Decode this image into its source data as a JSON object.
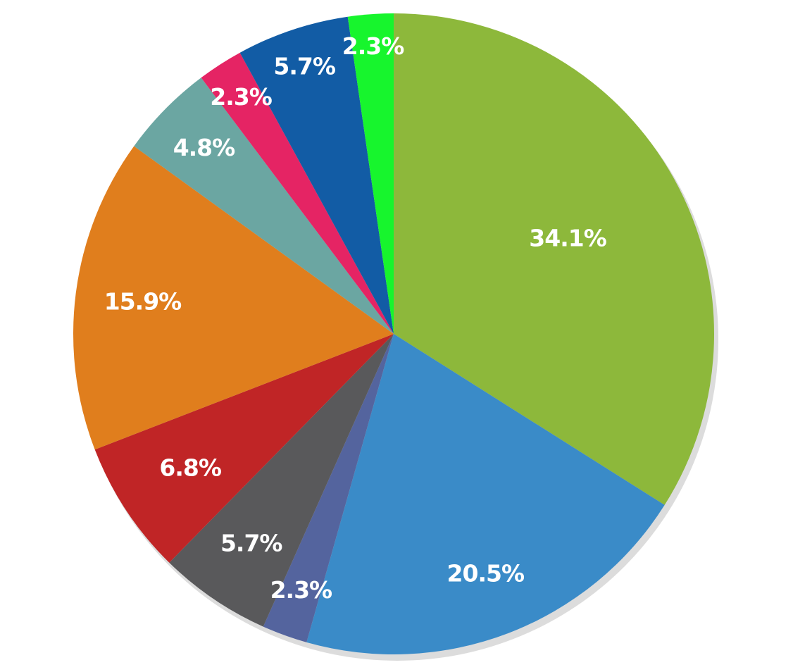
{
  "chart_data": {
    "type": "pie",
    "title": "",
    "start_angle_deg": 0,
    "direction": "clockwise",
    "legend": "none",
    "slices": [
      {
        "value": 34.1,
        "label": "34.1%",
        "color": "#8DB83B"
      },
      {
        "value": 20.5,
        "label": "20.5%",
        "color": "#3A8BC8"
      },
      {
        "value": 2.3,
        "label": "2.3%",
        "color": "#54649E"
      },
      {
        "value": 5.7,
        "label": "5.7%",
        "color": "#59595B"
      },
      {
        "value": 6.8,
        "label": "6.8%",
        "color": "#C02526"
      },
      {
        "value": 15.9,
        "label": "15.9%",
        "color": "#E07E1D"
      },
      {
        "value": 4.8,
        "label": "4.8%",
        "color": "#6BA6A2"
      },
      {
        "value": 2.3,
        "label": "2.3%",
        "color": "#E52464"
      },
      {
        "value": 5.7,
        "label": "5.7%",
        "color": "#125CA5"
      },
      {
        "value": 2.3,
        "label": "2.3%",
        "color": "#17F52D"
      }
    ]
  }
}
